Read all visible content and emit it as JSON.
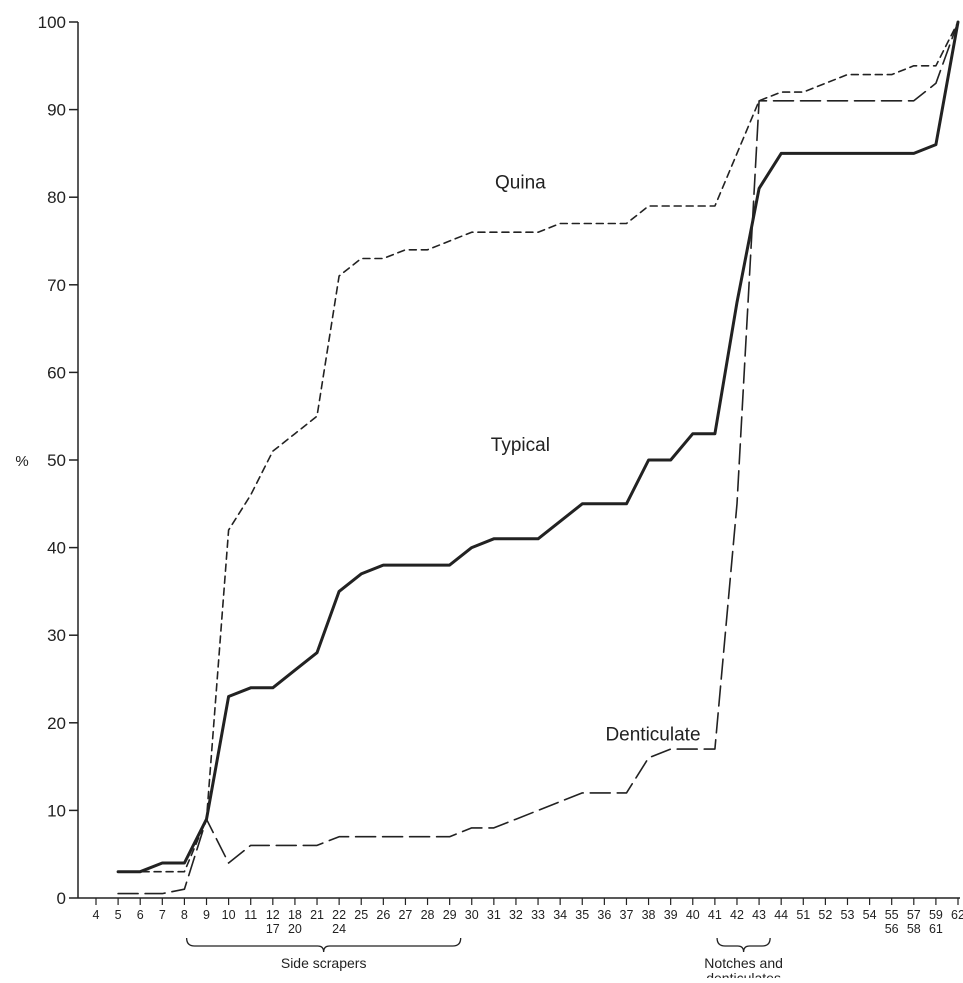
{
  "chart_data": {
    "type": "line",
    "title": "",
    "xlabel": "",
    "ylabel": "%",
    "ylim": [
      0,
      100
    ],
    "y_ticks": [
      "0",
      "10",
      "20",
      "30",
      "40",
      "50",
      "60",
      "70",
      "80",
      "90",
      "100"
    ],
    "categories": [
      {
        "top": "4",
        "bottom": ""
      },
      {
        "top": "5",
        "bottom": ""
      },
      {
        "top": "6",
        "bottom": ""
      },
      {
        "top": "7",
        "bottom": ""
      },
      {
        "top": "8",
        "bottom": ""
      },
      {
        "top": "9",
        "bottom": ""
      },
      {
        "top": "10",
        "bottom": ""
      },
      {
        "top": "11",
        "bottom": ""
      },
      {
        "top": "12",
        "bottom": "17"
      },
      {
        "top": "18",
        "bottom": "20"
      },
      {
        "top": "21",
        "bottom": ""
      },
      {
        "top": "22",
        "bottom": "24"
      },
      {
        "top": "25",
        "bottom": ""
      },
      {
        "top": "26",
        "bottom": ""
      },
      {
        "top": "27",
        "bottom": ""
      },
      {
        "top": "28",
        "bottom": ""
      },
      {
        "top": "29",
        "bottom": ""
      },
      {
        "top": "30",
        "bottom": ""
      },
      {
        "top": "31",
        "bottom": ""
      },
      {
        "top": "32",
        "bottom": ""
      },
      {
        "top": "33",
        "bottom": ""
      },
      {
        "top": "34",
        "bottom": ""
      },
      {
        "top": "35",
        "bottom": ""
      },
      {
        "top": "36",
        "bottom": ""
      },
      {
        "top": "37",
        "bottom": ""
      },
      {
        "top": "38",
        "bottom": ""
      },
      {
        "top": "39",
        "bottom": ""
      },
      {
        "top": "40",
        "bottom": ""
      },
      {
        "top": "41",
        "bottom": ""
      },
      {
        "top": "42",
        "bottom": ""
      },
      {
        "top": "43",
        "bottom": ""
      },
      {
        "top": "44",
        "bottom": ""
      },
      {
        "top": "51",
        "bottom": ""
      },
      {
        "top": "52",
        "bottom": ""
      },
      {
        "top": "53",
        "bottom": ""
      },
      {
        "top": "54",
        "bottom": ""
      },
      {
        "top": "55",
        "bottom": "56"
      },
      {
        "top": "57",
        "bottom": "58"
      },
      {
        "top": "59",
        "bottom": "61"
      },
      {
        "top": "62",
        "bottom": ""
      }
    ],
    "series": [
      {
        "name": "Quina",
        "style": "short-dash",
        "label_at_index": 19,
        "label_value": 81,
        "values": [
          null,
          3,
          3,
          3,
          3,
          9,
          42,
          46,
          51,
          53,
          55,
          71,
          73,
          73,
          74,
          74,
          75,
          76,
          76,
          76,
          76,
          77,
          77,
          77,
          77,
          79,
          79,
          79,
          79,
          85,
          91,
          92,
          92,
          93,
          94,
          94,
          94,
          95,
          95,
          100
        ]
      },
      {
        "name": "Typical",
        "style": "solid",
        "label_at_index": 19,
        "label_value": 51,
        "values": [
          null,
          3,
          3,
          4,
          4,
          9,
          23,
          24,
          24,
          26,
          28,
          35,
          37,
          38,
          38,
          38,
          38,
          40,
          41,
          41,
          41,
          43,
          45,
          45,
          45,
          50,
          50,
          53,
          53,
          68,
          81,
          85,
          85,
          85,
          85,
          85,
          85,
          85,
          86,
          100
        ]
      },
      {
        "name": "Denticulate",
        "style": "long-dash",
        "label_at_index": 25,
        "label_value": 18,
        "values": [
          null,
          0.5,
          0.5,
          0.5,
          1,
          9,
          4,
          6,
          6,
          6,
          6,
          7,
          7,
          7,
          7,
          7,
          7,
          8,
          8,
          9,
          10,
          11,
          12,
          12,
          12,
          16,
          17,
          17,
          17,
          45,
          91,
          91,
          91,
          91,
          91,
          91,
          91,
          91,
          93,
          100
        ]
      }
    ],
    "brackets": [
      {
        "label": "Side scrapers",
        "from_index": 5,
        "to_index": 16
      },
      {
        "label_line1": "Notches and",
        "label_line2": "denticulates",
        "from_index": 29,
        "to_index": 30
      }
    ],
    "grid": false,
    "legend": "none"
  }
}
